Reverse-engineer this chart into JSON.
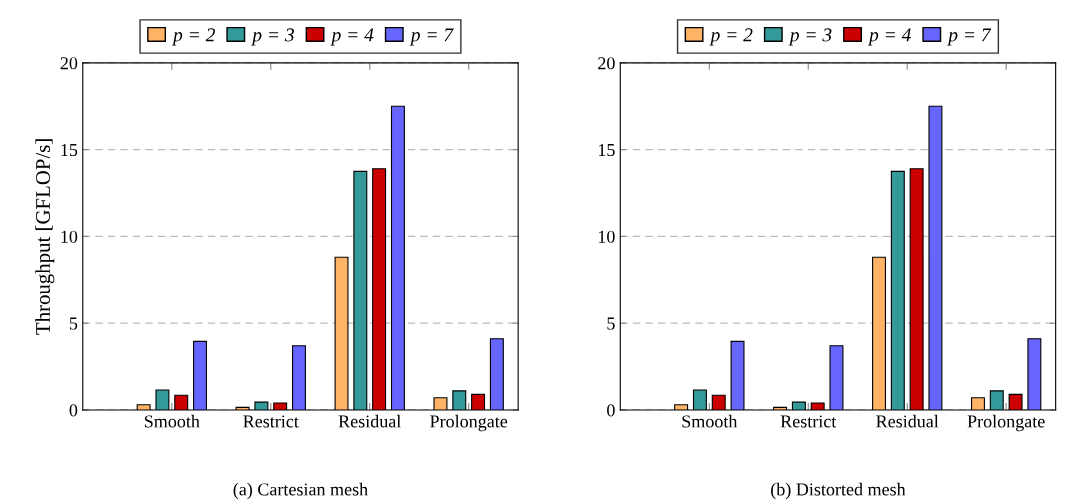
{
  "chart_data": [
    {
      "type": "bar",
      "categories": [
        "Smooth",
        "Restrict",
        "Residual",
        "Prolongate"
      ],
      "ylabel": "Throughput [GFLOP/s]",
      "ylim": [
        0,
        20
      ],
      "yticks": [
        0,
        5,
        10,
        15,
        20
      ],
      "grid": "y",
      "legend": "top",
      "annotations": [
        "(a) Cartesian mesh"
      ],
      "series": [
        {
          "name": "p = 2",
          "color": "#ffb366",
          "values": [
            0.3,
            0.15,
            8.8,
            0.7
          ]
        },
        {
          "name": "p = 3",
          "color": "#339999",
          "values": [
            1.15,
            0.45,
            13.75,
            1.1
          ]
        },
        {
          "name": "p = 4",
          "color": "#cc0000",
          "values": [
            0.85,
            0.4,
            13.9,
            0.9
          ]
        },
        {
          "name": "p = 7",
          "color": "#6666ff",
          "values": [
            3.95,
            3.7,
            17.5,
            4.1
          ]
        }
      ]
    },
    {
      "type": "bar",
      "categories": [
        "Smooth",
        "Restrict",
        "Residual",
        "Prolongate"
      ],
      "ylim": [
        0,
        20
      ],
      "yticks": [
        0,
        5,
        10,
        15,
        20
      ],
      "grid": "y",
      "legend": "top",
      "annotations": [
        "(b) Distorted mesh"
      ],
      "series": [
        {
          "name": "p = 2",
          "color": "#ffb366",
          "values": [
            0.3,
            0.15,
            8.8,
            0.7
          ]
        },
        {
          "name": "p = 3",
          "color": "#339999",
          "values": [
            1.15,
            0.45,
            13.75,
            1.1
          ]
        },
        {
          "name": "p = 4",
          "color": "#cc0000",
          "values": [
            0.85,
            0.4,
            13.9,
            0.9
          ]
        },
        {
          "name": "p = 7",
          "color": "#6666ff",
          "values": [
            3.95,
            3.7,
            17.5,
            4.1
          ]
        }
      ]
    }
  ]
}
